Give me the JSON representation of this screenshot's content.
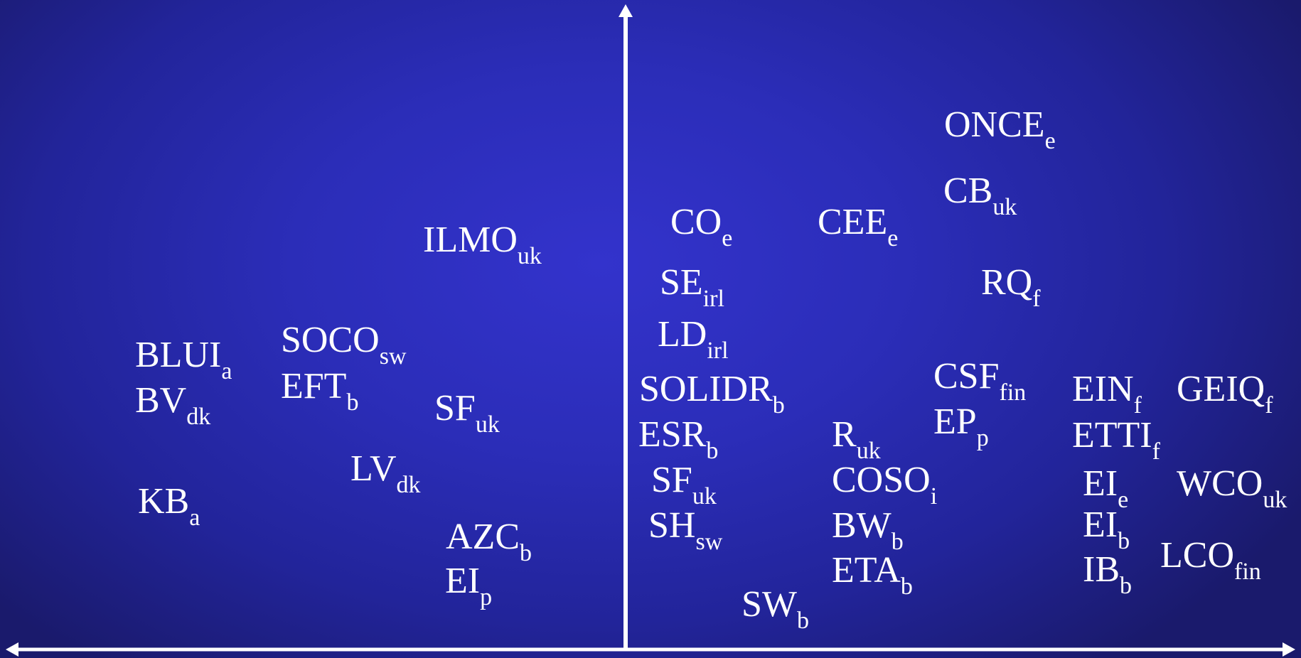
{
  "labels": [
    {
      "main": "ONCE",
      "sub": "e"
    },
    {
      "main": "CB",
      "sub": "uk"
    },
    {
      "main": "CO",
      "sub": "e"
    },
    {
      "main": "CEE",
      "sub": "e"
    },
    {
      "main": "ILMO",
      "sub": "uk"
    },
    {
      "main": "SE",
      "sub": "irl"
    },
    {
      "main": "RQ",
      "sub": "f"
    },
    {
      "main": "LD",
      "sub": "irl"
    },
    {
      "main": "BLUI",
      "sub": "a"
    },
    {
      "main": "SOCO",
      "sub": "sw"
    },
    {
      "main": "BV",
      "sub": "dk"
    },
    {
      "main": "EFT",
      "sub": "b"
    },
    {
      "main": "SF",
      "sub": "uk"
    },
    {
      "main": "SOLIDR",
      "sub": "b"
    },
    {
      "main": "CSF",
      "sub": "fin"
    },
    {
      "main": "EIN",
      "sub": "f"
    },
    {
      "main": "GEIQ",
      "sub": "f"
    },
    {
      "main": "EP",
      "sub": "p"
    },
    {
      "main": "ESR",
      "sub": "b"
    },
    {
      "main": "R",
      "sub": "uk"
    },
    {
      "main": "ETTI",
      "sub": "f"
    },
    {
      "main": "LV",
      "sub": "dk"
    },
    {
      "main": "SF",
      "sub": "uk"
    },
    {
      "main": "COSO",
      "sub": "i"
    },
    {
      "main": "EI",
      "sub": "e"
    },
    {
      "main": "WCO",
      "sub": "uk"
    },
    {
      "main": "KB",
      "sub": "a"
    },
    {
      "main": "SH",
      "sub": "sw"
    },
    {
      "main": "BW",
      "sub": "b"
    },
    {
      "main": "EI",
      "sub": "b"
    },
    {
      "main": "AZC",
      "sub": "b"
    },
    {
      "main": "LCO",
      "sub": "fin"
    },
    {
      "main": "ETA",
      "sub": "b"
    },
    {
      "main": "EI",
      "sub": "p"
    },
    {
      "main": "IB",
      "sub": "b"
    },
    {
      "main": "SW",
      "sub": "b"
    }
  ]
}
